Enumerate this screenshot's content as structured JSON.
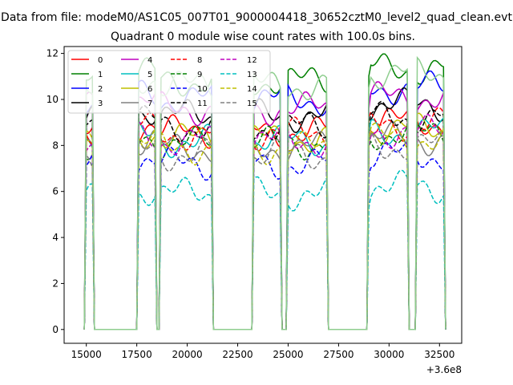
{
  "chart_data": {
    "type": "line",
    "suptitle": "Data from file: modeM0/AS1C05_007T01_9000004418_30652cztM0_level2_quad_clean.evt",
    "title": "Quadrant 0 module wise count rates with 100.0s bins.",
    "xlabel": "",
    "ylabel": "",
    "xlim": [
      13900,
      33600
    ],
    "ylim": [
      -0.6,
      12.3
    ],
    "xticks": [
      15000,
      17500,
      20000,
      22500,
      25000,
      27500,
      30000,
      32500
    ],
    "xtick_labels": [
      "15000",
      "17500",
      "20000",
      "22500",
      "25000",
      "27500",
      "30000",
      "32500"
    ],
    "yticks": [
      0,
      2,
      4,
      6,
      8,
      10,
      12
    ],
    "ytick_labels": [
      "0",
      "2",
      "4",
      "6",
      "8",
      "10",
      "12"
    ],
    "offset_text": "+3.6e8",
    "legend_location": "upper-left",
    "legend_columns": 4,
    "active_windows": [
      [
        15000,
        15300
      ],
      [
        17550,
        18450
      ],
      [
        18700,
        21200
      ],
      [
        23300,
        24600
      ],
      [
        24950,
        26950
      ],
      [
        29000,
        30950
      ],
      [
        31400,
        32750
      ]
    ],
    "series": [
      {
        "name": "0",
        "color": "#ff0000",
        "dash": "solid",
        "level": 8.6
      },
      {
        "name": "1",
        "color": "#008000",
        "dash": "solid",
        "level": 10.8
      },
      {
        "name": "2",
        "color": "#0000ff",
        "dash": "solid",
        "level": 10.0
      },
      {
        "name": "3",
        "color": "#000000",
        "dash": "solid",
        "level": 9.3
      },
      {
        "name": "4",
        "color": "#bf00bf",
        "dash": "solid",
        "level": 9.6
      },
      {
        "name": "5",
        "color": "#00bfbf",
        "dash": "solid",
        "level": 8.2
      },
      {
        "name": "6",
        "color": "#bfbf00",
        "dash": "solid",
        "level": 8.3
      },
      {
        "name": "7",
        "color": "#808080",
        "dash": "solid",
        "level": 7.9
      },
      {
        "name": "8",
        "color": "#ff0000",
        "dash": "dashed",
        "level": 8.5
      },
      {
        "name": "9",
        "color": "#008000",
        "dash": "dashed",
        "level": 8.1
      },
      {
        "name": "10",
        "color": "#0000ff",
        "dash": "dashed",
        "level": 7.2
      },
      {
        "name": "11",
        "color": "#000000",
        "dash": "dashed",
        "level": 8.8
      },
      {
        "name": "12",
        "color": "#bf00bf",
        "dash": "dashed",
        "level": 8.2
      },
      {
        "name": "13",
        "color": "#00bfbf",
        "dash": "dashed",
        "level": 5.9
      },
      {
        "name": "14",
        "color": "#bfbf00",
        "dash": "dashed",
        "level": 7.9
      },
      {
        "name": "15",
        "color": "#808080",
        "dash": "dashed",
        "level": 7.6
      },
      {
        "name": "",
        "color": "#8fce8f",
        "dash": "solid",
        "level": 10.6
      }
    ]
  }
}
